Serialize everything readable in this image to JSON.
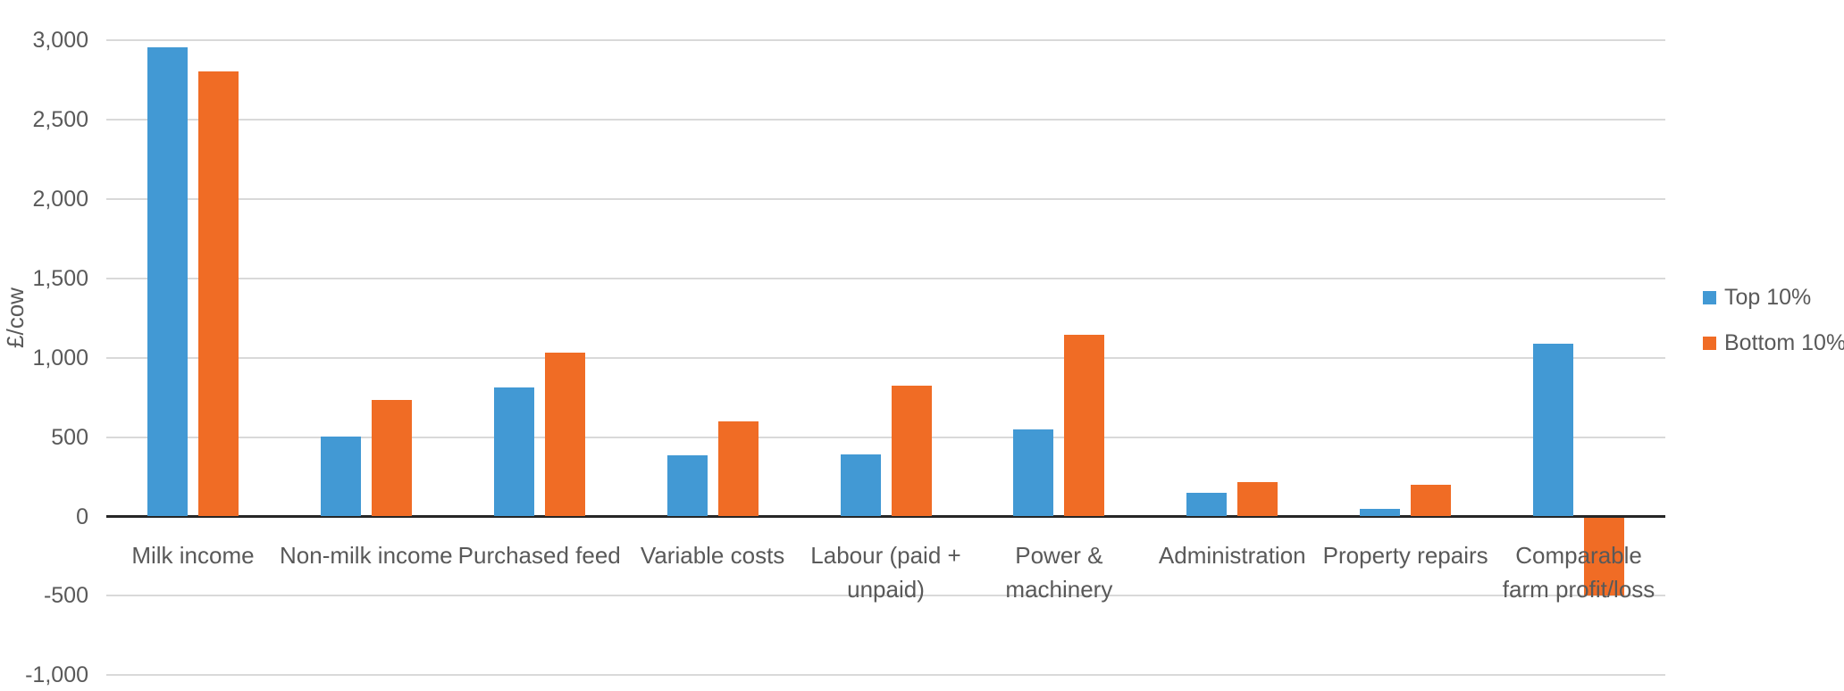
{
  "chart_data": {
    "type": "bar",
    "title": "",
    "xlabel": "",
    "ylabel": "£/cow",
    "grid": "horizontal",
    "legend_position": "right",
    "background_color": "#FFFFFF",
    "grid_color": "#D9D9D9",
    "axis_color": "#262626",
    "text_color": "#595959",
    "categories": [
      "Milk income",
      "Non-milk income",
      "Purchased feed",
      "Variable costs",
      "Labour (paid + unpaid)",
      "Power & machinery",
      "Administration",
      "Property repairs",
      "Comparable farm profit/loss"
    ],
    "category_lines": [
      [
        "Milk income"
      ],
      [
        "Non-milk income"
      ],
      [
        "Purchased feed"
      ],
      [
        "Variable costs"
      ],
      [
        "Labour (paid +",
        "unpaid)"
      ],
      [
        "Power &",
        "machinery"
      ],
      [
        "Administration"
      ],
      [
        "Property repairs"
      ],
      [
        "Comparable",
        "farm profit/loss"
      ]
    ],
    "series": [
      {
        "name": "Top 10%",
        "color": "#4299D4",
        "values": [
          2960,
          505,
          815,
          385,
          390,
          550,
          150,
          50,
          1090
        ]
      },
      {
        "name": "Bottom 10%",
        "color": "#F06C25",
        "values": [
          2805,
          735,
          1035,
          600,
          825,
          1145,
          215,
          200,
          -490
        ]
      }
    ],
    "y_axis": {
      "min": -1000,
      "max": 3000,
      "tick_interval": 500,
      "ticks": [
        {
          "value": 3000,
          "label": "3,000"
        },
        {
          "value": 2500,
          "label": "2,500"
        },
        {
          "value": 2000,
          "label": "2,000"
        },
        {
          "value": 1500,
          "label": "1,500"
        },
        {
          "value": 1000,
          "label": "1,000"
        },
        {
          "value": 500,
          "label": "500"
        },
        {
          "value": 0,
          "label": "0"
        },
        {
          "value": -500,
          "label": "-500"
        },
        {
          "value": -1000,
          "label": "-1,000"
        }
      ]
    }
  }
}
